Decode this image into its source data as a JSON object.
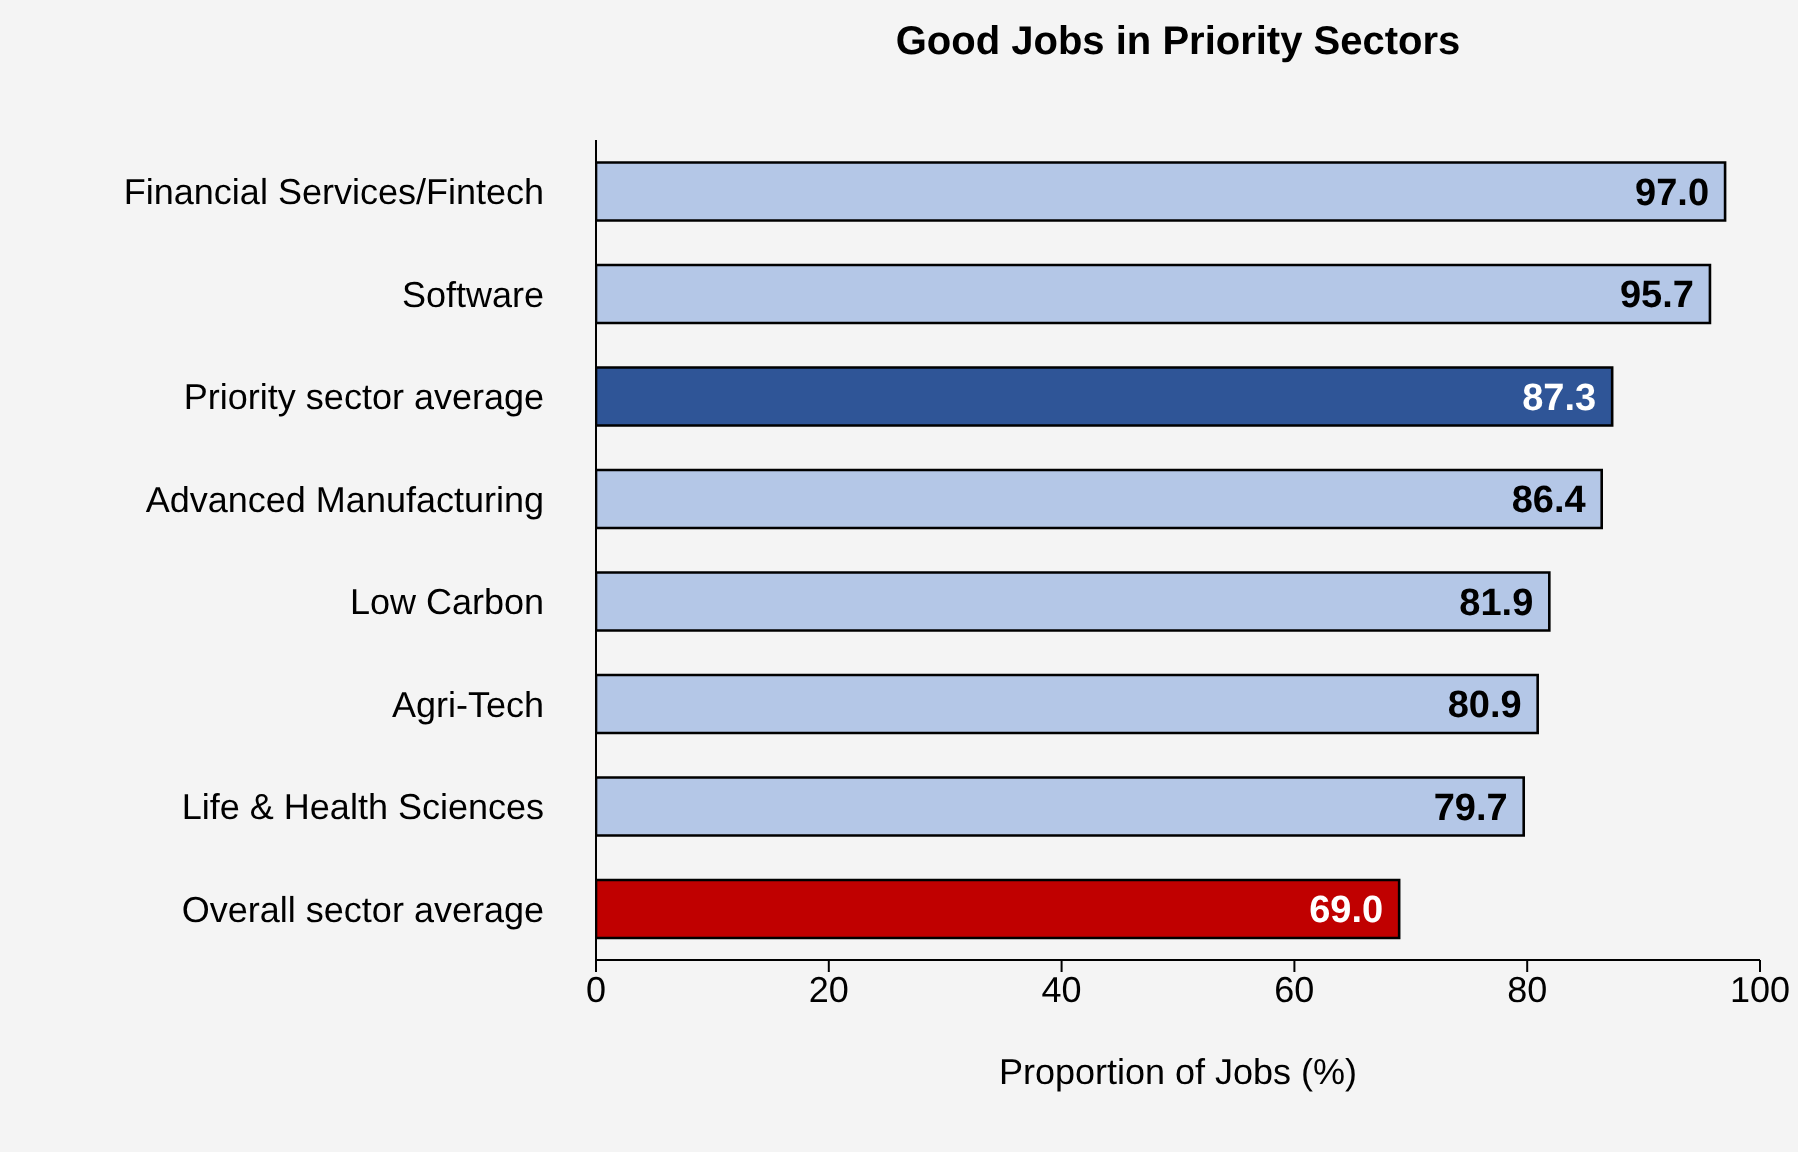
{
  "chart_data": {
    "type": "bar",
    "orientation": "horizontal",
    "title": "Good Jobs in Priority Sectors",
    "xlabel": "Proportion of Jobs (%)",
    "categories": [
      "Financial Services/Fintech",
      "Software",
      "Priority sector average",
      "Advanced Manufacturing",
      "Low Carbon",
      "Agri-Tech",
      "Life & Health Sciences",
      "Overall sector average"
    ],
    "values": [
      97.0,
      95.7,
      87.3,
      86.4,
      81.9,
      80.9,
      79.7,
      69.0
    ],
    "colors": [
      "#b4c7e7",
      "#b4c7e7",
      "#2f5597",
      "#b4c7e7",
      "#b4c7e7",
      "#b4c7e7",
      "#b4c7e7",
      "#c00000"
    ],
    "value_labels": [
      "97.0",
      "95.7",
      "87.3",
      "86.4",
      "81.9",
      "80.9",
      "79.7",
      "69.0"
    ],
    "xlim": [
      0,
      100
    ],
    "xticks": [
      0,
      20,
      40,
      60,
      80,
      100
    ],
    "grid": false,
    "legend": false
  }
}
